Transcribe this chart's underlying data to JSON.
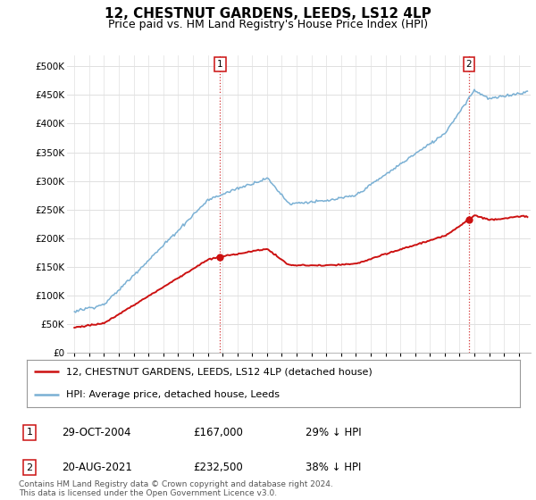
{
  "title": "12, CHESTNUT GARDENS, LEEDS, LS12 4LP",
  "subtitle": "Price paid vs. HM Land Registry's House Price Index (HPI)",
  "title_fontsize": 11,
  "subtitle_fontsize": 9,
  "hpi_color": "#7ab0d4",
  "price_color": "#cc1111",
  "marker_color": "#cc1111",
  "background_color": "#ffffff",
  "grid_color": "#e0e0e0",
  "ylim": [
    0,
    520000
  ],
  "yticks": [
    0,
    50000,
    100000,
    150000,
    200000,
    250000,
    300000,
    350000,
    400000,
    450000,
    500000
  ],
  "ytick_labels": [
    "£0",
    "£50K",
    "£100K",
    "£150K",
    "£200K",
    "£250K",
    "£300K",
    "£350K",
    "£400K",
    "£450K",
    "£500K"
  ],
  "sale1_x": 2004.83,
  "sale1_y": 167000,
  "sale1_label": "1",
  "sale2_x": 2021.63,
  "sale2_y": 232500,
  "sale2_label": "2",
  "legend_line1": "12, CHESTNUT GARDENS, LEEDS, LS12 4LP (detached house)",
  "legend_line2": "HPI: Average price, detached house, Leeds",
  "legend_color1": "#cc1111",
  "legend_color2": "#7ab0d4",
  "table_rows": [
    {
      "num": "1",
      "date": "29-OCT-2004",
      "price": "£167,000",
      "pct": "29% ↓ HPI"
    },
    {
      "num": "2",
      "date": "20-AUG-2021",
      "price": "£232,500",
      "pct": "38% ↓ HPI"
    }
  ],
  "footer": "Contains HM Land Registry data © Crown copyright and database right 2024.\nThis data is licensed under the Open Government Licence v3.0.",
  "xmin": 1994.5,
  "xmax": 2025.8
}
